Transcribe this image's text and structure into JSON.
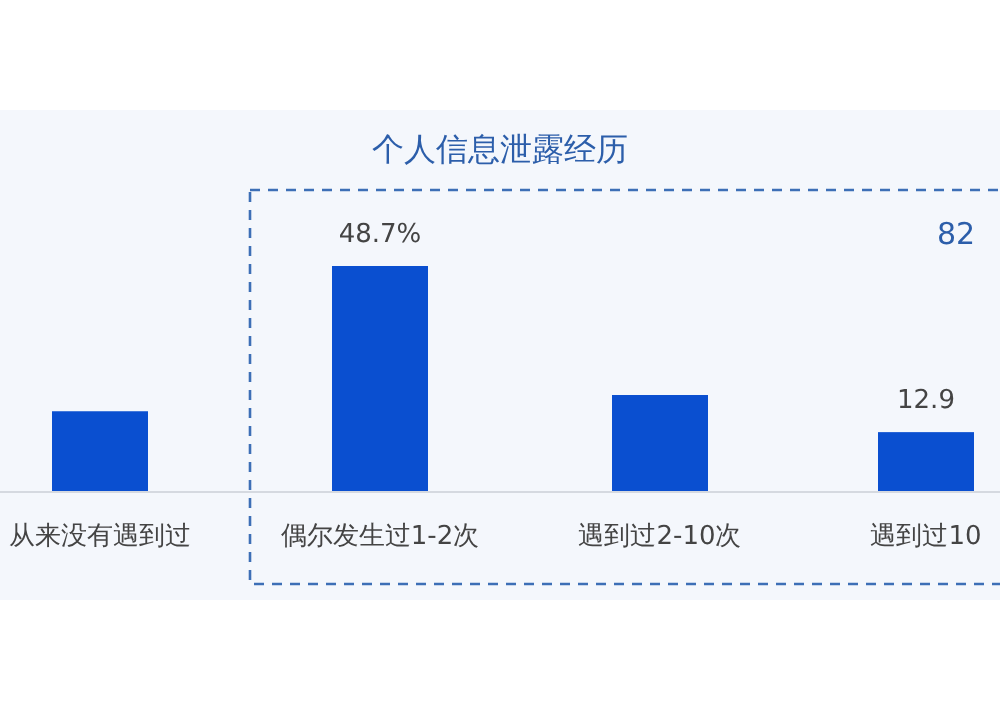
{
  "chart_data": {
    "type": "bar",
    "title": "个人信息泄露经历",
    "categories": [
      "从来没有遇到过",
      "偶尔发生过1-2次",
      "遇到过2-10次",
      "遇到过10"
    ],
    "values": [
      17.4,
      48.7,
      20.9,
      12.9
    ],
    "value_labels": [
      null,
      "48.7%",
      null,
      "12.9"
    ],
    "color": "#0a4fd0",
    "annotations": [
      "82"
    ]
  }
}
